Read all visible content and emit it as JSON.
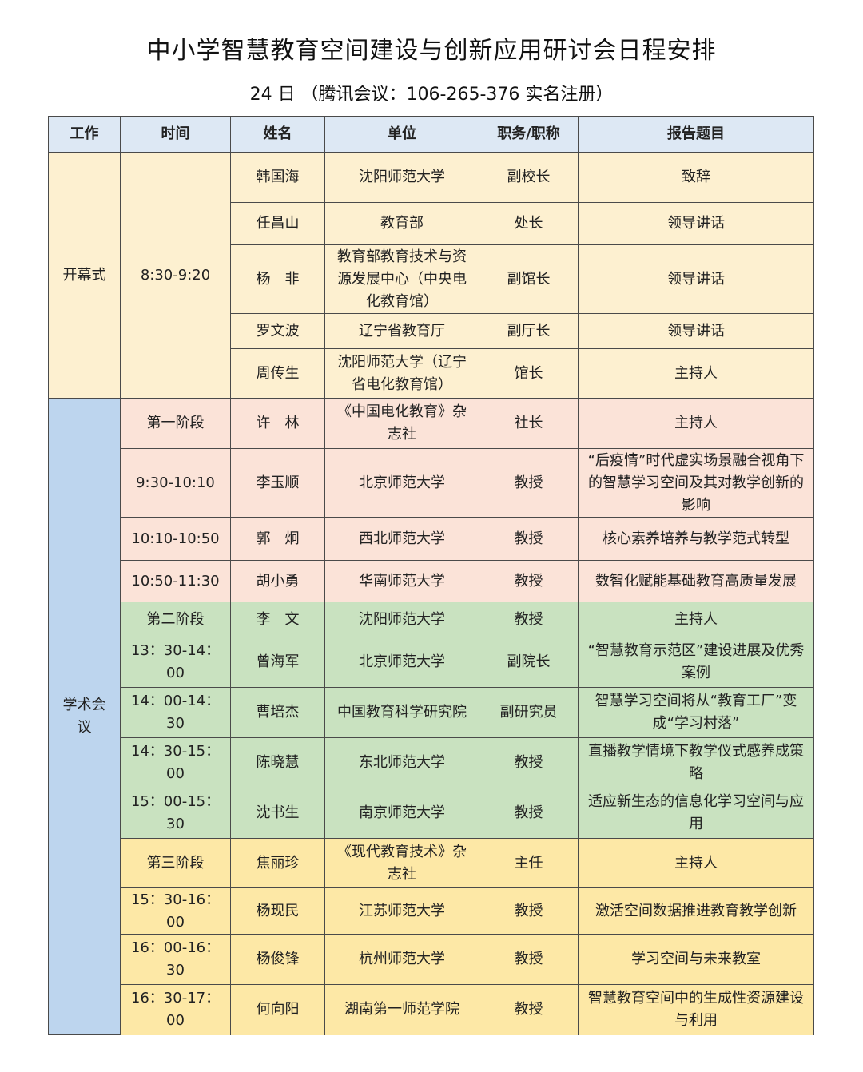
{
  "title": "中小学智慧教育空间建设与创新应用研讨会日程安排",
  "subtitle": "24 日 （腾讯会议：106-265-376 实名注册）",
  "colors": {
    "header": "#dde8f4",
    "opening": "#fdf0d0",
    "stage1": "#fbe3d8",
    "stage2": "#c9e2c0",
    "stage3": "#fde8a6",
    "session": "#bdd5ee"
  },
  "headers": [
    "工作",
    "时间",
    "姓名",
    "单位",
    "职务/职称",
    "报告题目"
  ],
  "sections": [
    {
      "label": "开幕式",
      "rows": [
        {
          "time": "8:30-9:20",
          "name": "韩国海",
          "unit": "沈阳师范大学",
          "position": "副校长",
          "topic": "致辞"
        },
        {
          "name": "任昌山",
          "unit": "教育部",
          "position": "处长",
          "topic": "领导讲话"
        },
        {
          "name": "杨　非",
          "unit": "教育部教育技术与资源发展中心（中央电化教育馆）",
          "position": "副馆长",
          "topic": "领导讲话"
        },
        {
          "name": "罗文波",
          "unit": "辽宁省教育厅",
          "position": "副厅长",
          "topic": "领导讲话"
        },
        {
          "name": "周传生",
          "unit": "沈阳师范大学（辽宁省电化教育馆）",
          "position": "馆长",
          "topic": "主持人"
        }
      ]
    },
    {
      "label": "学术会议",
      "rows": [
        {
          "time": "第一阶段",
          "name": "许　林",
          "unit": "《中国电化教育》杂志社",
          "position": "社长",
          "topic": "主持人",
          "group": "pink"
        },
        {
          "time": "9:30-10:10",
          "name": "李玉顺",
          "unit": "北京师范大学",
          "position": "教授",
          "topic": "“后疫情”时代虚实场景融合视角下的智慧学习空间及其对教学创新的影响",
          "group": "pink"
        },
        {
          "time": "10:10-10:50",
          "name": "郭　炯",
          "unit": "西北师范大学",
          "position": "教授",
          "topic": "核心素养培养与教学范式转型",
          "group": "pink"
        },
        {
          "time": "10:50-11:30",
          "name": "胡小勇",
          "unit": "华南师范大学",
          "position": "教授",
          "topic": "数智化赋能基础教育高质量发展",
          "group": "pink"
        },
        {
          "time": "第二阶段",
          "name": "李　文",
          "unit": "沈阳师范大学",
          "position": "教授",
          "topic": "主持人",
          "group": "green"
        },
        {
          "time": "13：30-14：00",
          "name": "曾海军",
          "unit": "北京师范大学",
          "position": "副院长",
          "topic": "“智慧教育示范区”建设进展及优秀案例",
          "group": "green"
        },
        {
          "time": "14：00-14：30",
          "name": "曹培杰",
          "unit": "中国教育科学研究院",
          "position": "副研究员",
          "topic": "智慧学习空间将从“教育工厂”变成“学习村落”",
          "group": "green"
        },
        {
          "time": "14：30-15：00",
          "name": "陈晓慧",
          "unit": "东北师范大学",
          "position": "教授",
          "topic": "直播教学情境下教学仪式感养成策略",
          "group": "green"
        },
        {
          "time": "15：00-15：30",
          "name": "沈书生",
          "unit": "南京师范大学",
          "position": "教授",
          "topic": "适应新生态的信息化学习空间与应用",
          "group": "green"
        },
        {
          "time": "第三阶段",
          "name": "焦丽珍",
          "unit": "《现代教育技术》杂志社",
          "position": "主任",
          "topic": "主持人",
          "group": "yellow"
        },
        {
          "time": "15：30-16：00",
          "name": "杨现民",
          "unit": "江苏师范大学",
          "position": "教授",
          "topic": "激活空间数据推进教育教学创新",
          "group": "yellow"
        },
        {
          "time": "16：00-16：30",
          "name": "杨俊锋",
          "unit": "杭州师范大学",
          "position": "教授",
          "topic": "学习空间与未来教室",
          "group": "yellow"
        },
        {
          "time": "16：30-17：00",
          "name": "何向阳",
          "unit": "湖南第一师范学院",
          "position": "教授",
          "topic": "智慧教育空间中的生成性资源建设与利用",
          "group": "yellow"
        }
      ]
    }
  ]
}
